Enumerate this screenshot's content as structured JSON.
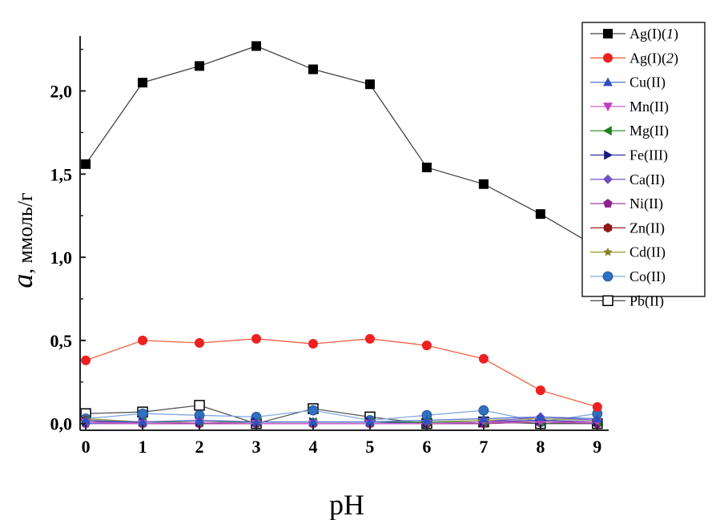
{
  "chart_data": {
    "type": "line",
    "xlabel": "pH",
    "ylabel_italic": "a",
    "ylabel": ", ммоль/г",
    "xlim": [
      -0.1,
      9.2
    ],
    "ylim": [
      -0.04,
      2.33
    ],
    "xticks": [
      "0",
      "1",
      "2",
      "3",
      "4",
      "5",
      "6",
      "7",
      "8",
      "9"
    ],
    "yticks": [
      {
        "v": 0,
        "label": "0,0"
      },
      {
        "v": 0.5,
        "label": "0,5"
      },
      {
        "v": 1,
        "label": "1,0"
      },
      {
        "v": 1.5,
        "label": "1,5"
      },
      {
        "v": 2,
        "label": "2,0"
      }
    ],
    "grid": false,
    "legend_position": "top-right",
    "x": [
      0,
      1,
      2,
      3,
      4,
      5,
      6,
      7,
      8,
      9
    ],
    "series": [
      {
        "name": "Ag(I)",
        "suffix": "1",
        "color": "#000000",
        "line": "#444444",
        "marker": "square",
        "values": [
          1.56,
          2.05,
          2.15,
          2.27,
          2.13,
          2.04,
          1.54,
          1.44,
          1.26,
          1.06
        ]
      },
      {
        "name": "Ag(I)",
        "suffix": "2",
        "color": "#ee2020",
        "line": "#f06040",
        "marker": "circle",
        "values": [
          0.38,
          0.5,
          0.485,
          0.51,
          0.48,
          0.51,
          0.47,
          0.39,
          0.2,
          0.1
        ]
      },
      {
        "name": "Cu(II)",
        "color": "#3050c0",
        "line": "#5070d0",
        "marker": "triangle-up",
        "values": [
          0.02,
          0.01,
          0.02,
          0.01,
          0.01,
          0.01,
          0.02,
          0.03,
          0.04,
          0.03
        ]
      },
      {
        "name": "Mn(II)",
        "color": "#c040c0",
        "line": "#d060d0",
        "marker": "triangle-down",
        "values": [
          0.01,
          0.0,
          0.01,
          0.0,
          0.0,
          0.0,
          0.0,
          0.01,
          0.01,
          0.01
        ]
      },
      {
        "name": "Mg(II)",
        "color": "#208020",
        "line": "#40a040",
        "marker": "triangle-left",
        "values": [
          0.02,
          0.01,
          0.01,
          0.01,
          0.01,
          0.01,
          0.01,
          0.01,
          0.01,
          0.01
        ]
      },
      {
        "name": "Fe(III)",
        "color": "#1a1a80",
        "line": "#3030a0",
        "marker": "triangle-right",
        "values": [
          0.01,
          0.01,
          0.01,
          0.01,
          0.01,
          0.01,
          0.0,
          0.01,
          0.02,
          0.01
        ]
      },
      {
        "name": "Ca(II)",
        "color": "#7050c0",
        "line": "#8060d0",
        "marker": "diamond",
        "values": [
          0.0,
          0.01,
          0.01,
          0.01,
          0.01,
          0.01,
          0.01,
          0.01,
          0.04,
          0.02
        ]
      },
      {
        "name": "Ni(II)",
        "color": "#902090",
        "line": "#a040a0",
        "marker": "pentagon",
        "values": [
          0.0,
          0.0,
          0.0,
          0.0,
          0.0,
          0.0,
          0.0,
          0.0,
          0.01,
          0.0
        ]
      },
      {
        "name": "Zn(II)",
        "color": "#901818",
        "line": "#a02020",
        "marker": "hexagon",
        "values": [
          0.02,
          0.0,
          0.0,
          0.0,
          0.0,
          0.0,
          0.0,
          0.0,
          0.01,
          0.0
        ]
      },
      {
        "name": "Cd(II)",
        "color": "#808020",
        "line": "#a0a040",
        "marker": "star",
        "values": [
          0.03,
          0.01,
          0.02,
          0.01,
          0.01,
          0.01,
          0.01,
          0.02,
          0.03,
          0.02
        ]
      },
      {
        "name": "Co(II)",
        "color": "#3070c0",
        "line": "#80a8e0",
        "marker": "ball",
        "values": [
          0.03,
          0.06,
          0.05,
          0.04,
          0.08,
          0.02,
          0.05,
          0.08,
          0.01,
          0.06
        ]
      },
      {
        "name": "Pb(II)",
        "color": "#000000",
        "line": "#555555",
        "marker": "open-square",
        "values": [
          0.06,
          0.07,
          0.11,
          0.0,
          0.09,
          0.04,
          0.0,
          0.01,
          0.0,
          0.0
        ]
      }
    ]
  }
}
